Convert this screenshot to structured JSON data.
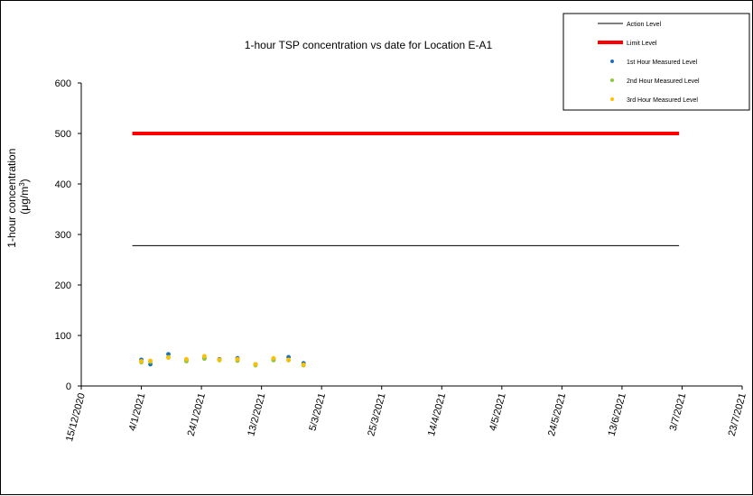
{
  "chart_data": {
    "type": "scatter",
    "title": "1-hour TSP concentration vs date for Location E-A1",
    "ylabel": {
      "line1": "1-hour concentration",
      "line2_prefix": "(μg/m",
      "line2_sup": "3",
      "line2_suffix": ")"
    },
    "xlabel": "",
    "x_ticks": [
      "15/12/2020",
      "4/1/2021",
      "24/1/2021",
      "13/2/2021",
      "5/3/2021",
      "25/3/2021",
      "14/4/2021",
      "4/5/2021",
      "24/5/2021",
      "13/6/2021",
      "3/7/2021",
      "23/7/2021"
    ],
    "y_ticks": [
      "0",
      "100",
      "200",
      "300",
      "400",
      "500",
      "600"
    ],
    "xlim": [
      "2020-12-15",
      "2021-07-23"
    ],
    "ylim": [
      0,
      600
    ],
    "grid": false,
    "legend_position": "top-right",
    "action_level": {
      "name": "Action Level",
      "value": 278,
      "x_range": [
        "2021-01-01",
        "2021-07-02"
      ],
      "color": "#000000"
    },
    "limit_level": {
      "name": "Limit Level",
      "value": 500,
      "x_range": [
        "2021-01-01",
        "2021-07-02"
      ],
      "color": "#ff0000"
    },
    "series": [
      {
        "name": "1st Hour Measured Level",
        "color": "#1f6fb4",
        "points": [
          {
            "x": "2021-01-04",
            "y": 52
          },
          {
            "x": "2021-01-07",
            "y": 43
          },
          {
            "x": "2021-01-13",
            "y": 63
          },
          {
            "x": "2021-01-19",
            "y": 52
          },
          {
            "x": "2021-01-25",
            "y": 55
          },
          {
            "x": "2021-01-30",
            "y": 53
          },
          {
            "x": "2021-02-05",
            "y": 55
          },
          {
            "x": "2021-02-11",
            "y": 43
          },
          {
            "x": "2021-02-17",
            "y": 53
          },
          {
            "x": "2021-02-22",
            "y": 57
          },
          {
            "x": "2021-02-27",
            "y": 45
          }
        ]
      },
      {
        "name": "2nd Hour Measured Level",
        "color": "#8dc63f",
        "points": [
          {
            "x": "2021-01-04",
            "y": 47
          },
          {
            "x": "2021-01-07",
            "y": 48
          },
          {
            "x": "2021-01-13",
            "y": 57
          },
          {
            "x": "2021-01-19",
            "y": 49
          },
          {
            "x": "2021-01-25",
            "y": 54
          },
          {
            "x": "2021-01-30",
            "y": 51
          },
          {
            "x": "2021-02-05",
            "y": 50
          },
          {
            "x": "2021-02-11",
            "y": 41
          },
          {
            "x": "2021-02-17",
            "y": 51
          },
          {
            "x": "2021-02-22",
            "y": 51
          },
          {
            "x": "2021-02-27",
            "y": 41
          }
        ]
      },
      {
        "name": "3rd Hour Measured Level",
        "color": "#ffc000",
        "points": [
          {
            "x": "2021-01-04",
            "y": 49
          },
          {
            "x": "2021-01-07",
            "y": 50
          },
          {
            "x": "2021-01-13",
            "y": 56
          },
          {
            "x": "2021-01-19",
            "y": 53
          },
          {
            "x": "2021-01-25",
            "y": 59
          },
          {
            "x": "2021-01-30",
            "y": 52
          },
          {
            "x": "2021-02-05",
            "y": 53
          },
          {
            "x": "2021-02-11",
            "y": 43
          },
          {
            "x": "2021-02-17",
            "y": 55
          },
          {
            "x": "2021-02-22",
            "y": 52
          },
          {
            "x": "2021-02-27",
            "y": 42
          }
        ]
      }
    ]
  }
}
